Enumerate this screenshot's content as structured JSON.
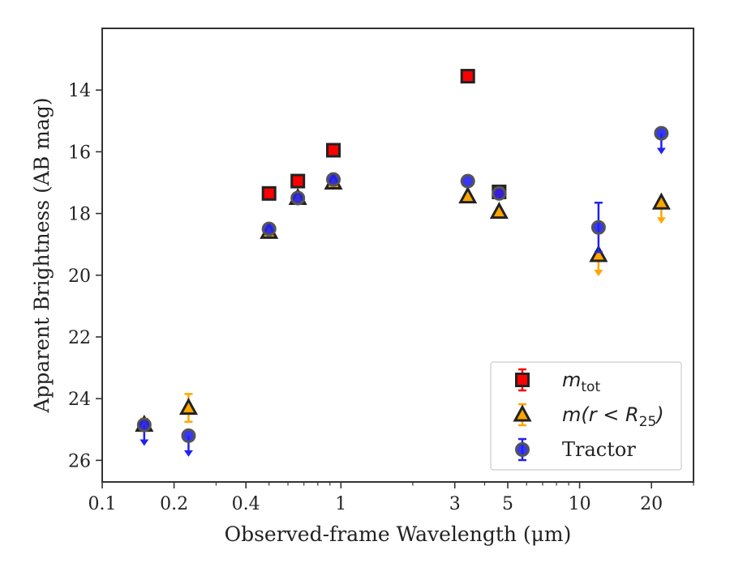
{
  "chart_data": {
    "type": "scatter",
    "xlabel": "Observed-frame Wavelength (μm)",
    "ylabel": "Apparent Brightness (AB mag)",
    "xscale": "log",
    "xlim": [
      0.1,
      30
    ],
    "ylim": [
      26.7,
      12.0
    ],
    "y_inverted": true,
    "xticks": [
      {
        "value": 0.1,
        "label": "0.1"
      },
      {
        "value": 0.2,
        "label": "0.2"
      },
      {
        "value": 0.4,
        "label": "0.4"
      },
      {
        "value": 1,
        "label": "1"
      },
      {
        "value": 3,
        "label": "3"
      },
      {
        "value": 5,
        "label": "5"
      },
      {
        "value": 10,
        "label": "10"
      },
      {
        "value": 20,
        "label": "20"
      }
    ],
    "yticks": [
      14,
      16,
      18,
      20,
      22,
      24,
      26
    ],
    "legend_placement": "lower-right",
    "series": [
      {
        "name": "m_tot",
        "legend_main": "m",
        "legend_sub": "tot",
        "marker": "square",
        "color": "#ff0000",
        "edge_color": "#222222",
        "points": [
          {
            "x": 0.5,
            "y": 17.35
          },
          {
            "x": 0.66,
            "y": 16.95
          },
          {
            "x": 0.93,
            "y": 15.95
          },
          {
            "x": 3.4,
            "y": 13.55
          },
          {
            "x": 4.6,
            "y": 17.3
          }
        ]
      },
      {
        "name": "m(r < R_25)",
        "legend_main": "m(r < R",
        "legend_sub": "25",
        "legend_close": ")",
        "marker": "triangle",
        "color": "#ffa500",
        "edge_color": "#222222",
        "points": [
          {
            "x": 0.15,
            "y": 24.85,
            "err": 0.2
          },
          {
            "x": 0.23,
            "y": 24.3,
            "err": 0.45
          },
          {
            "x": 0.5,
            "y": 18.6
          },
          {
            "x": 0.66,
            "y": 17.5
          },
          {
            "x": 0.93,
            "y": 17.0
          },
          {
            "x": 3.4,
            "y": 17.45
          },
          {
            "x": 4.6,
            "y": 17.95
          },
          {
            "x": 12,
            "y": 19.35,
            "upper_limit": true
          },
          {
            "x": 22,
            "y": 17.65,
            "upper_limit": true
          }
        ]
      },
      {
        "name": "Tractor",
        "marker": "circle",
        "color": "#2222ee",
        "edge_color": "#555555",
        "points": [
          {
            "x": 0.15,
            "y": 24.85,
            "upper_limit": true
          },
          {
            "x": 0.23,
            "y": 25.2,
            "upper_limit": true
          },
          {
            "x": 0.5,
            "y": 18.5
          },
          {
            "x": 0.66,
            "y": 17.5
          },
          {
            "x": 0.93,
            "y": 16.9
          },
          {
            "x": 3.4,
            "y": 16.95
          },
          {
            "x": 4.6,
            "y": 17.35
          },
          {
            "x": 12,
            "y": 18.45,
            "err": 0.8
          },
          {
            "x": 22,
            "y": 15.4,
            "upper_limit": true
          }
        ]
      }
    ]
  }
}
